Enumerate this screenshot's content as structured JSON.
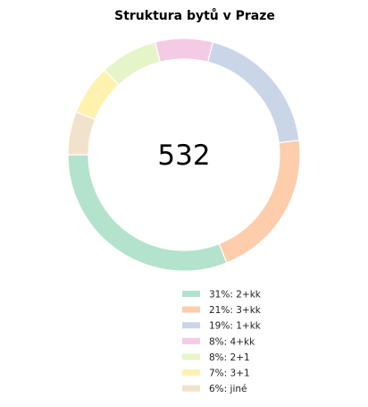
{
  "chart_data": {
    "type": "pie",
    "title": "Struktura bytů v Praze",
    "center_label": "532",
    "donut": true,
    "legend_position": "lower-right",
    "series": [
      {
        "label": "31%: 2+kk",
        "value": 31,
        "color": "#b3e2cd"
      },
      {
        "label": "21%: 3+kk",
        "value": 21,
        "color": "#fdcdac"
      },
      {
        "label": "19%: 1+kk",
        "value": 19,
        "color": "#cbd5e8"
      },
      {
        "label": "8%: 4+kk",
        "value": 8,
        "color": "#f4cae4"
      },
      {
        "label": "8%: 2+1",
        "value": 8,
        "color": "#e6f5c9"
      },
      {
        "label": "7%: 3+1",
        "value": 7,
        "color": "#fff2ae"
      },
      {
        "label": "6%: jiné",
        "value": 6,
        "color": "#f1e2cc"
      }
    ]
  }
}
